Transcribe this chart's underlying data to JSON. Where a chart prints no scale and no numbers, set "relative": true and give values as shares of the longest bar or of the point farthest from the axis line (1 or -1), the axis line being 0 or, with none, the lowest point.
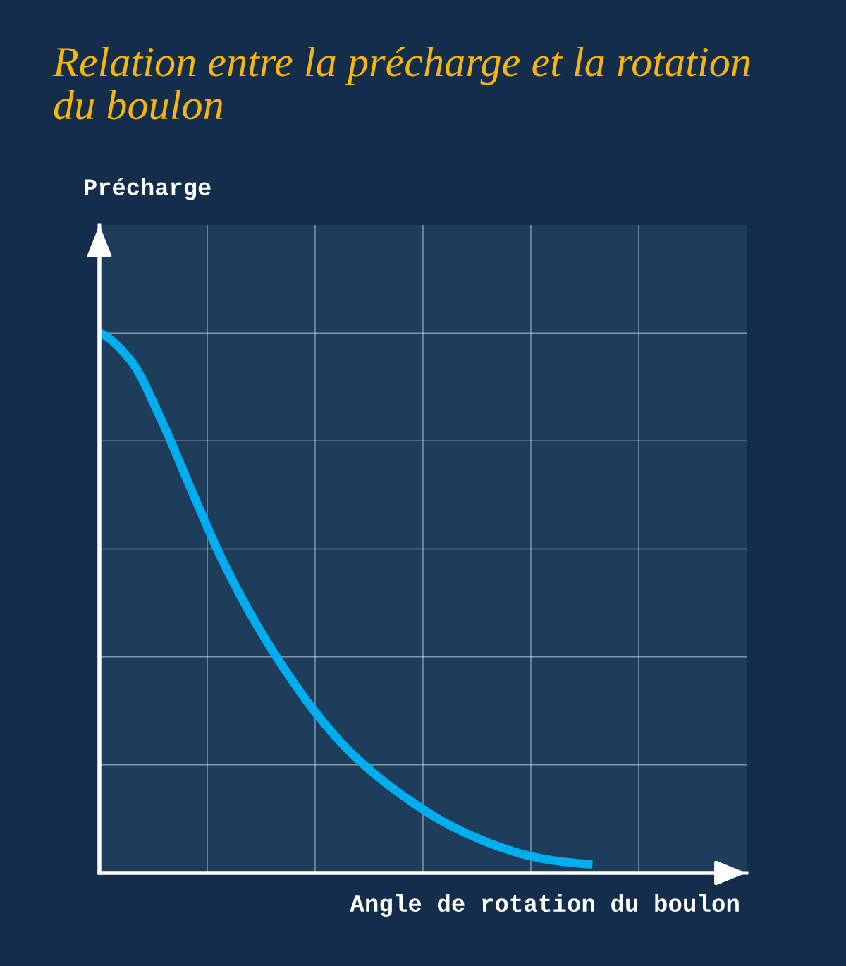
{
  "chart_data": {
    "type": "line",
    "title": "Relation entre la précharge et la rotation\ndu boulon",
    "xlabel": "Angle de rotation du boulon",
    "annotations": [
      "Précharge"
    ],
    "relative": true,
    "grid": true,
    "categories": [
      null,
      null,
      null,
      null,
      null,
      null,
      null,
      null,
      null,
      null,
      null,
      null,
      null,
      null,
      null,
      null,
      null,
      null,
      null,
      null,
      null,
      null
    ],
    "series": [
      {
        "color": "#00aeef",
        "values": [
          1.0,
          0.95,
          0.84,
          0.707,
          0.578,
          0.47,
          0.378,
          0.298,
          0.232,
          0.18,
          0.137,
          0.1,
          0.071,
          0.048,
          0.031,
          0.021,
          0.016,
          null,
          null,
          null,
          null,
          null
        ]
      }
    ]
  }
}
